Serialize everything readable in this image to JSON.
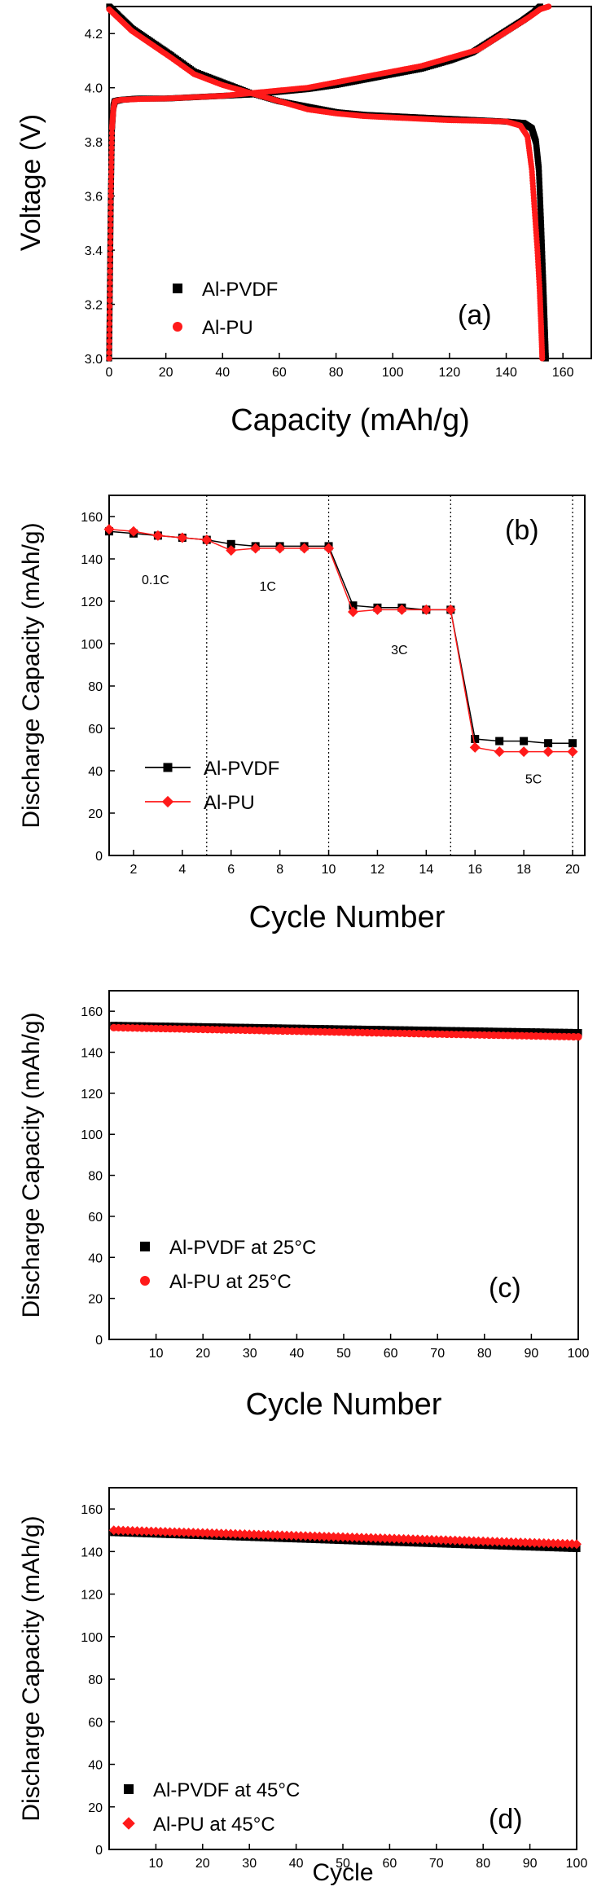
{
  "chart_data": [
    {
      "type": "line",
      "panel_label": "(a)",
      "xlabel": "Capacity (mAh/g)",
      "ylabel": "Voltage (V)",
      "xlim": [
        0,
        170
      ],
      "ylim": [
        3.0,
        4.3
      ],
      "xticks": [
        0,
        20,
        40,
        60,
        80,
        100,
        120,
        140,
        160
      ],
      "yticks": [
        3.0,
        3.2,
        3.4,
        3.6,
        3.8,
        4.0,
        4.2
      ],
      "legend_position": "lower-left",
      "series": [
        {
          "name": "Al-PVDF",
          "color": "#000000",
          "marker": "square",
          "curves": [
            {
              "x": [
                0,
                0.3,
                0.6,
                1,
                1.5,
                2,
                4,
                10,
                20,
                30,
                40,
                50,
                60,
                70,
                80,
                90,
                100,
                110,
                120,
                128,
                134,
                140,
                146,
                150,
                152
              ],
              "y": [
                3.0,
                3.3,
                3.6,
                3.85,
                3.93,
                3.95,
                3.955,
                3.96,
                3.96,
                3.965,
                3.97,
                3.975,
                3.985,
                3.995,
                4.01,
                4.03,
                4.05,
                4.07,
                4.1,
                4.13,
                4.17,
                4.21,
                4.25,
                4.28,
                4.3
              ]
            },
            {
              "x": [
                0,
                3,
                8,
                15,
                22,
                30,
                40,
                50,
                60,
                70,
                80,
                90,
                100,
                110,
                120,
                130,
                140,
                146,
                149,
                150.5,
                151.5,
                152.3,
                153,
                153.5,
                154
              ],
              "y": [
                4.3,
                4.27,
                4.22,
                4.17,
                4.12,
                4.06,
                4.02,
                3.98,
                3.95,
                3.93,
                3.91,
                3.9,
                3.895,
                3.89,
                3.885,
                3.88,
                3.875,
                3.87,
                3.85,
                3.8,
                3.7,
                3.5,
                3.3,
                3.15,
                3.0
              ]
            }
          ]
        },
        {
          "name": "Al-PU",
          "color": "#ff1a1a",
          "marker": "circle",
          "curves": [
            {
              "x": [
                0,
                0.3,
                0.6,
                1,
                1.5,
                2,
                4,
                10,
                20,
                30,
                40,
                50,
                60,
                70,
                80,
                90,
                100,
                110,
                120,
                130,
                136,
                142,
                148,
                152,
                155
              ],
              "y": [
                3.0,
                3.3,
                3.6,
                3.85,
                3.92,
                3.95,
                3.955,
                3.958,
                3.96,
                3.965,
                3.97,
                3.98,
                3.99,
                4.0,
                4.02,
                4.04,
                4.06,
                4.08,
                4.11,
                4.14,
                4.18,
                4.22,
                4.26,
                4.29,
                4.3
              ]
            },
            {
              "x": [
                0,
                3,
                8,
                15,
                22,
                30,
                40,
                50,
                60,
                70,
                80,
                90,
                100,
                110,
                120,
                130,
                140,
                145,
                147.5,
                149,
                150,
                151,
                151.8,
                152.3,
                152.7
              ],
              "y": [
                4.29,
                4.26,
                4.21,
                4.16,
                4.11,
                4.05,
                4.01,
                3.98,
                3.95,
                3.92,
                3.905,
                3.895,
                3.89,
                3.885,
                3.88,
                3.878,
                3.875,
                3.86,
                3.82,
                3.7,
                3.55,
                3.4,
                3.25,
                3.12,
                3.0
              ]
            }
          ]
        }
      ]
    },
    {
      "type": "line",
      "panel_label": "(b)",
      "xlabel": "Cycle Number",
      "ylabel": "Discharge Capacity (mAh/g)",
      "xlim": [
        1,
        20.5
      ],
      "ylim": [
        0,
        170
      ],
      "xticks": [
        2,
        4,
        6,
        8,
        10,
        12,
        14,
        16,
        18,
        20
      ],
      "yticks": [
        0,
        20,
        40,
        60,
        80,
        100,
        120,
        140,
        160
      ],
      "dividers": [
        5,
        10,
        15,
        20
      ],
      "annotations": [
        {
          "text": "0.1C",
          "x": 2.9,
          "y": 128
        },
        {
          "text": "1C",
          "x": 7.5,
          "y": 125
        },
        {
          "text": "3C",
          "x": 12.9,
          "y": 95
        },
        {
          "text": "5C",
          "x": 18.4,
          "y": 34
        }
      ],
      "legend_position": "lower-left",
      "x": [
        1,
        2,
        3,
        4,
        5,
        6,
        7,
        8,
        9,
        10,
        11,
        12,
        13,
        14,
        15,
        16,
        17,
        18,
        19,
        20
      ],
      "series": [
        {
          "name": "Al-PVDF",
          "color": "#000000",
          "marker": "square",
          "values": [
            153,
            152,
            151,
            150,
            149,
            147,
            146,
            146,
            146,
            146,
            118,
            117,
            117,
            116,
            116,
            55,
            54,
            54,
            53,
            53
          ]
        },
        {
          "name": "Al-PU",
          "color": "#ff1a1a",
          "marker": "diamond",
          "values": [
            154,
            153,
            151,
            150,
            149,
            144,
            145,
            145,
            145,
            145,
            115,
            116,
            116,
            116,
            116,
            51,
            49,
            49,
            49,
            49
          ]
        }
      ]
    },
    {
      "type": "scatter",
      "panel_label": "(c)",
      "xlabel": "Cycle Number",
      "ylabel": "Discharge Capacity (mAh/g)",
      "xlim": [
        0,
        100
      ],
      "ylim": [
        0,
        170
      ],
      "xticks": [
        10,
        20,
        30,
        40,
        50,
        60,
        70,
        80,
        90,
        100
      ],
      "yticks": [
        0,
        20,
        40,
        60,
        80,
        100,
        120,
        140,
        160
      ],
      "legend_position": "lower-left",
      "series": [
        {
          "name": "Al-PVDF at 25°C",
          "color": "#000000",
          "marker": "square",
          "start": 153,
          "end": 149.5
        },
        {
          "name": "Al-PU at 25°C",
          "color": "#ff1a1a",
          "marker": "circle",
          "start": 152,
          "end": 147.5
        }
      ]
    },
    {
      "type": "scatter",
      "panel_label": "(d)",
      "xlabel": "Cycle",
      "ylabel": "Discharge Capacity (mAh/g)",
      "xlim": [
        0,
        100
      ],
      "ylim": [
        0,
        170
      ],
      "xticks": [
        10,
        20,
        30,
        40,
        50,
        60,
        70,
        80,
        90,
        100
      ],
      "yticks": [
        0,
        20,
        40,
        60,
        80,
        100,
        120,
        140,
        160
      ],
      "legend_position": "lower-left",
      "series": [
        {
          "name": "Al-PVDF at 45°C",
          "color": "#000000",
          "marker": "square",
          "start": 149,
          "end": 141.5
        },
        {
          "name": "Al-PU at 45°C",
          "color": "#ff1a1a",
          "marker": "diamond",
          "start": 150,
          "end": 143.5
        }
      ]
    }
  ]
}
